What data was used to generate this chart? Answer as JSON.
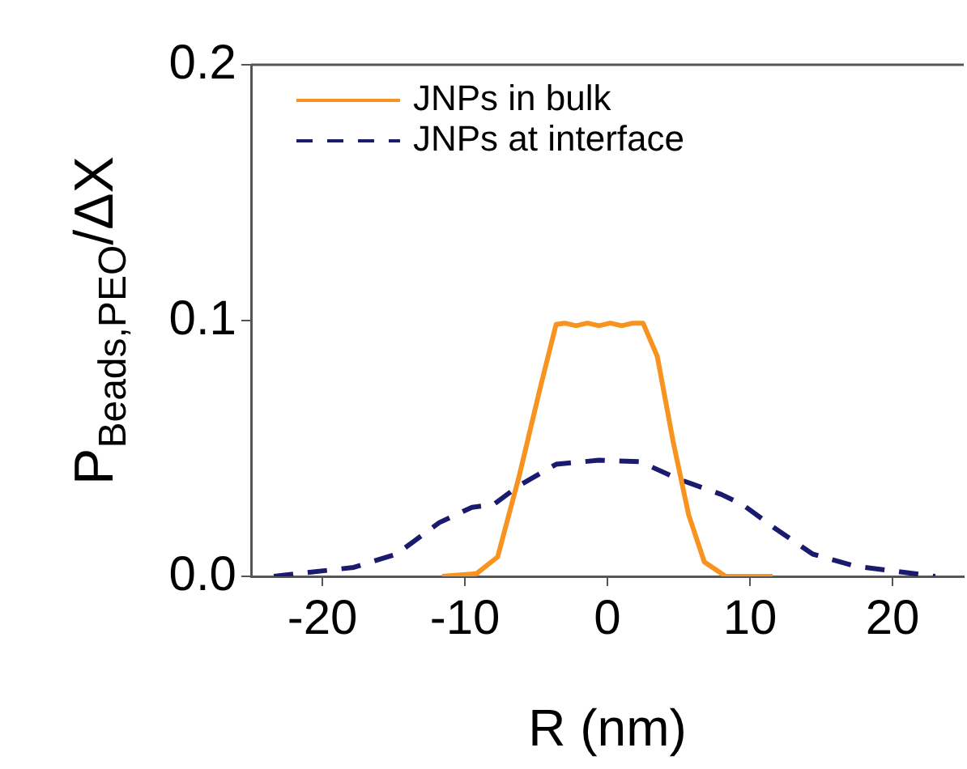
{
  "chart_data": {
    "type": "line",
    "xlabel": "R (nm)",
    "ylabel": "P$_{Beads,PEO}$/ΔX",
    "xlim": [
      -25,
      25
    ],
    "ylim": [
      0,
      0.2
    ],
    "xticks": [
      -20,
      -10,
      0,
      10,
      20
    ],
    "yticks": [
      {
        "value": 0,
        "label": "0.0"
      },
      0.1,
      0.2
    ],
    "grid": false,
    "legend": "top left",
    "marker": "none",
    "series": [
      {
        "name": "JNPs in bulk",
        "color": "#f7931e",
        "line_style": "solid",
        "x": [
          -11.6,
          -9.2,
          -7.7,
          -6.2,
          -4.7,
          -3.6,
          -3.0,
          -2.2,
          -1.4,
          -0.6,
          0.2,
          1.0,
          1.8,
          2.5,
          3.5,
          4.6,
          5.7,
          6.8,
          8.3,
          11.6
        ],
        "values": [
          0,
          0.001,
          0.0076,
          0.039,
          0.074,
          0.0985,
          0.099,
          0.098,
          0.099,
          0.098,
          0.099,
          0.098,
          0.099,
          0.099,
          0.086,
          0.053,
          0.024,
          0.0056,
          0,
          0
        ]
      },
      {
        "name": "JNPs at interface",
        "color": "#1a1a6e",
        "line_style": "dashed",
        "x": [
          -23.4,
          -17.8,
          -14.8,
          -11.8,
          -9.5,
          -8.0,
          -6.2,
          -3.6,
          -0.6,
          2.3,
          5.0,
          8.0,
          9.5,
          11.7,
          14.4,
          17.4,
          23.0
        ],
        "values": [
          0,
          0.0035,
          0.0087,
          0.021,
          0.027,
          0.028,
          0.0355,
          0.0438,
          0.0454,
          0.0448,
          0.038,
          0.032,
          0.028,
          0.019,
          0.0087,
          0.004,
          0
        ]
      }
    ]
  }
}
